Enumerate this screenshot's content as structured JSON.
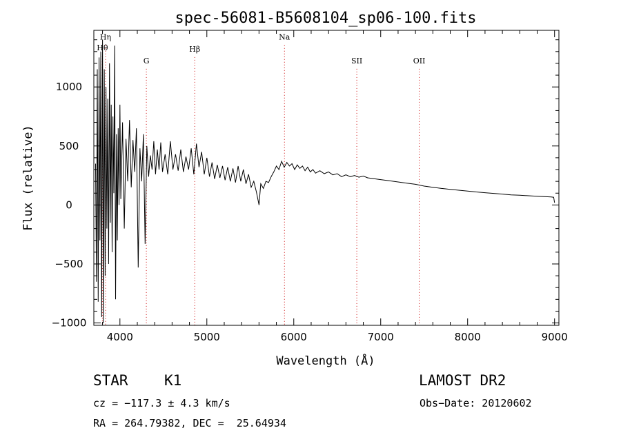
{
  "chart_data": {
    "type": "line",
    "title": "spec-56081-B5608104_sp06-100.fits",
    "xlabel": "Wavelength (Å)",
    "ylabel": "Flux (relative)",
    "xlim": [
      3700,
      9050
    ],
    "ylim": [
      -1020,
      1480
    ],
    "xticks": [
      4000,
      5000,
      6000,
      7000,
      8000,
      9000
    ],
    "yticks": [
      -1000,
      -500,
      0,
      500,
      1000
    ],
    "xtick_labels": [
      "4000",
      "5000",
      "6000",
      "7000",
      "8000",
      "9000"
    ],
    "ytick_labels": [
      "−1000",
      "−500",
      "0",
      "500",
      "1000"
    ],
    "grid": false,
    "line_color": "#000000",
    "marker_color": "#cc0000",
    "spectral_lines": [
      {
        "label": "Hη",
        "x": 3835,
        "label_y": 1400
      },
      {
        "label": "Hθ",
        "x": 3798,
        "label_y": 1310
      },
      {
        "label": "G",
        "x": 4304,
        "label_y": 1200
      },
      {
        "label": "Hβ",
        "x": 4861,
        "label_y": 1300
      },
      {
        "label": "Na",
        "x": 5893,
        "label_y": 1400
      },
      {
        "label": "SII",
        "x": 6725,
        "label_y": 1200
      },
      {
        "label": "OII",
        "x": 7443,
        "label_y": 1200
      }
    ],
    "series": [
      {
        "values": [
          [
            3720,
            350
          ],
          [
            3730,
            -650
          ],
          [
            3740,
            1150
          ],
          [
            3750,
            -820
          ],
          [
            3760,
            1250
          ],
          [
            3770,
            -300
          ],
          [
            3780,
            1300
          ],
          [
            3790,
            -950
          ],
          [
            3800,
            1400
          ],
          [
            3810,
            -1000
          ],
          [
            3820,
            1150
          ],
          [
            3830,
            -600
          ],
          [
            3840,
            1000
          ],
          [
            3850,
            -200
          ],
          [
            3860,
            900
          ],
          [
            3870,
            -500
          ],
          [
            3880,
            1200
          ],
          [
            3890,
            -150
          ],
          [
            3900,
            850
          ],
          [
            3910,
            -400
          ],
          [
            3920,
            750
          ],
          [
            3930,
            100
          ],
          [
            3940,
            1350
          ],
          [
            3950,
            -800
          ],
          [
            3960,
            600
          ],
          [
            3970,
            -300
          ],
          [
            3980,
            650
          ],
          [
            3990,
            0
          ],
          [
            4000,
            850
          ],
          [
            4010,
            50
          ],
          [
            4030,
            700
          ],
          [
            4050,
            -200
          ],
          [
            4070,
            560
          ],
          [
            4090,
            200
          ],
          [
            4110,
            720
          ],
          [
            4130,
            150
          ],
          [
            4150,
            550
          ],
          [
            4170,
            280
          ],
          [
            4190,
            650
          ],
          [
            4210,
            -530
          ],
          [
            4230,
            480
          ],
          [
            4250,
            200
          ],
          [
            4270,
            600
          ],
          [
            4290,
            -330
          ],
          [
            4310,
            500
          ],
          [
            4330,
            240
          ],
          [
            4350,
            420
          ],
          [
            4370,
            300
          ],
          [
            4390,
            540
          ],
          [
            4410,
            260
          ],
          [
            4430,
            470
          ],
          [
            4450,
            300
          ],
          [
            4470,
            530
          ],
          [
            4490,
            280
          ],
          [
            4520,
            430
          ],
          [
            4550,
            260
          ],
          [
            4580,
            540
          ],
          [
            4610,
            300
          ],
          [
            4640,
            430
          ],
          [
            4670,
            290
          ],
          [
            4700,
            470
          ],
          [
            4730,
            280
          ],
          [
            4760,
            410
          ],
          [
            4790,
            300
          ],
          [
            4820,
            480
          ],
          [
            4850,
            260
          ],
          [
            4880,
            520
          ],
          [
            4910,
            320
          ],
          [
            4940,
            450
          ],
          [
            4970,
            260
          ],
          [
            5000,
            400
          ],
          [
            5030,
            240
          ],
          [
            5060,
            360
          ],
          [
            5090,
            220
          ],
          [
            5120,
            340
          ],
          [
            5150,
            230
          ],
          [
            5180,
            330
          ],
          [
            5210,
            210
          ],
          [
            5240,
            320
          ],
          [
            5270,
            200
          ],
          [
            5300,
            310
          ],
          [
            5330,
            190
          ],
          [
            5360,
            330
          ],
          [
            5390,
            200
          ],
          [
            5420,
            300
          ],
          [
            5450,
            180
          ],
          [
            5480,
            260
          ],
          [
            5510,
            150
          ],
          [
            5540,
            200
          ],
          [
            5570,
            110
          ],
          [
            5600,
            0
          ],
          [
            5620,
            180
          ],
          [
            5650,
            140
          ],
          [
            5680,
            200
          ],
          [
            5710,
            190
          ],
          [
            5740,
            240
          ],
          [
            5770,
            280
          ],
          [
            5800,
            330
          ],
          [
            5830,
            300
          ],
          [
            5860,
            370
          ],
          [
            5890,
            320
          ],
          [
            5920,
            360
          ],
          [
            5950,
            330
          ],
          [
            5980,
            350
          ],
          [
            6010,
            300
          ],
          [
            6040,
            340
          ],
          [
            6070,
            310
          ],
          [
            6100,
            330
          ],
          [
            6130,
            290
          ],
          [
            6160,
            320
          ],
          [
            6190,
            280
          ],
          [
            6220,
            300
          ],
          [
            6250,
            270
          ],
          [
            6300,
            290
          ],
          [
            6350,
            265
          ],
          [
            6400,
            280
          ],
          [
            6450,
            255
          ],
          [
            6500,
            265
          ],
          [
            6550,
            240
          ],
          [
            6600,
            255
          ],
          [
            6650,
            240
          ],
          [
            6700,
            250
          ],
          [
            6750,
            235
          ],
          [
            6800,
            245
          ],
          [
            6850,
            230
          ],
          [
            6900,
            225
          ],
          [
            6950,
            220
          ],
          [
            7000,
            215
          ],
          [
            7100,
            205
          ],
          [
            7200,
            195
          ],
          [
            7300,
            185
          ],
          [
            7400,
            175
          ],
          [
            7500,
            160
          ],
          [
            7600,
            150
          ],
          [
            7700,
            140
          ],
          [
            7800,
            132
          ],
          [
            7900,
            125
          ],
          [
            8000,
            118
          ],
          [
            8100,
            110
          ],
          [
            8200,
            104
          ],
          [
            8300,
            98
          ],
          [
            8400,
            92
          ],
          [
            8500,
            86
          ],
          [
            8600,
            82
          ],
          [
            8700,
            78
          ],
          [
            8800,
            74
          ],
          [
            8900,
            70
          ],
          [
            8960,
            68
          ],
          [
            8990,
            65
          ],
          [
            9000,
            20
          ]
        ]
      }
    ]
  },
  "info": {
    "class_label": "STAR",
    "subclass_label": "K1",
    "survey_label": "LAMOST DR2",
    "cz_text": "cz = −117.3 ± 4.3 km/s",
    "obs_date_text": "Obs−Date: 20120602",
    "coords_text": "RA = 264.79382, DEC =  25.64934"
  }
}
